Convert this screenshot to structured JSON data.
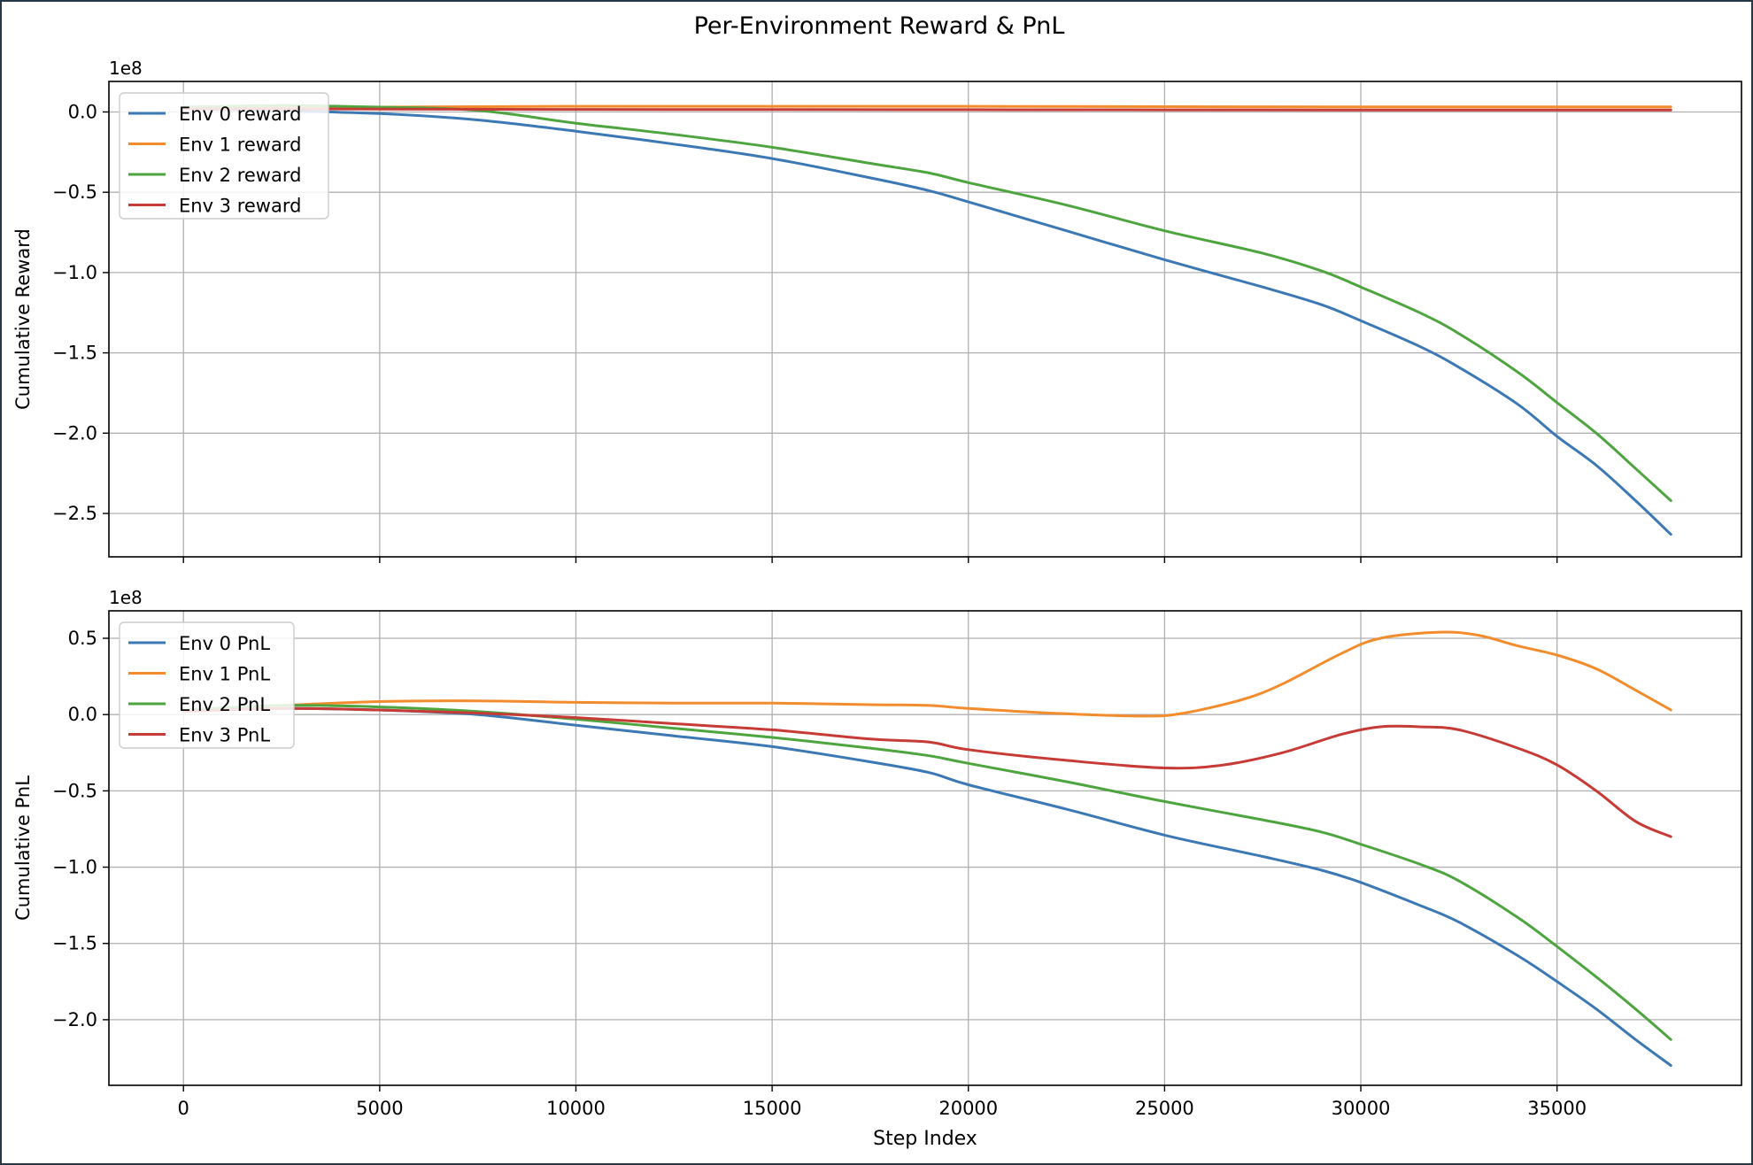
{
  "figure_title": "Per-Environment Reward & PnL",
  "colors": {
    "env0": "#3b78b4",
    "env1": "#f28c2c",
    "env2": "#4ea540",
    "env3": "#c73b36",
    "grid": "#b0b0b0",
    "frame": "#243848"
  },
  "chart_data": [
    {
      "type": "line",
      "title": "",
      "xlabel": "",
      "ylabel": "Cumulative Reward",
      "offset_label": "1e8",
      "xlim": [
        -1900,
        39700
      ],
      "ylim": [
        -2.77,
        0.19
      ],
      "xticks": [
        0,
        5000,
        10000,
        15000,
        20000,
        25000,
        30000,
        35000
      ],
      "yticks": [
        0.0,
        -0.5,
        -1.0,
        -1.5,
        -2.0,
        -2.5
      ],
      "ytick_labels": [
        "0.0",
        "−0.5",
        "−1.0",
        "−1.5",
        "−2.0",
        "−2.5"
      ],
      "show_xtick_labels": false,
      "grid": true,
      "legend_position": "upper-left",
      "series": [
        {
          "name": "Env 0 reward",
          "color_key": "env0",
          "x": [
            0,
            2000,
            5000,
            7500,
            10000,
            12500,
            15000,
            17500,
            19000,
            20000,
            22500,
            25000,
            27500,
            29000,
            30000,
            31500,
            32500,
            34000,
            35000,
            36000,
            37000,
            37900
          ],
          "y": [
            0.02,
            0.01,
            -0.01,
            -0.05,
            -0.12,
            -0.2,
            -0.29,
            -0.41,
            -0.49,
            -0.56,
            -0.74,
            -0.92,
            -1.09,
            -1.2,
            -1.3,
            -1.46,
            -1.59,
            -1.82,
            -2.02,
            -2.2,
            -2.42,
            -2.63
          ]
        },
        {
          "name": "Env 1 reward",
          "color_key": "env1",
          "x": [
            0,
            5000,
            10000,
            15000,
            20000,
            25000,
            30000,
            35000,
            37900
          ],
          "y": [
            0.02,
            0.03,
            0.035,
            0.035,
            0.035,
            0.033,
            0.032,
            0.032,
            0.032
          ]
        },
        {
          "name": "Env 2 reward",
          "color_key": "env2",
          "x": [
            0,
            2500,
            5000,
            7500,
            10000,
            12500,
            15000,
            17500,
            19000,
            20000,
            22500,
            25000,
            27500,
            29000,
            30000,
            31500,
            32500,
            34000,
            35000,
            36000,
            37000,
            37900
          ],
          "y": [
            0.03,
            0.04,
            0.03,
            0.01,
            -0.07,
            -0.14,
            -0.22,
            -0.32,
            -0.38,
            -0.44,
            -0.58,
            -0.74,
            -0.88,
            -0.99,
            -1.09,
            -1.25,
            -1.38,
            -1.62,
            -1.81,
            -2.0,
            -2.22,
            -2.42
          ]
        },
        {
          "name": "Env 3 reward",
          "color_key": "env3",
          "x": [
            0,
            5000,
            10000,
            15000,
            20000,
            25000,
            30000,
            35000,
            37900
          ],
          "y": [
            0.02,
            0.018,
            0.016,
            0.015,
            0.014,
            0.013,
            0.012,
            0.012,
            0.012
          ]
        }
      ]
    },
    {
      "type": "line",
      "title": "",
      "xlabel": "Step Index",
      "ylabel": "Cumulative PnL",
      "offset_label": "1e8",
      "xlim": [
        -1900,
        39700
      ],
      "ylim": [
        -2.43,
        0.68
      ],
      "xticks": [
        0,
        5000,
        10000,
        15000,
        20000,
        25000,
        30000,
        35000
      ],
      "xtick_labels": [
        "0",
        "5000",
        "10000",
        "15000",
        "20000",
        "25000",
        "30000",
        "35000"
      ],
      "yticks": [
        0.5,
        0.0,
        -0.5,
        -1.0,
        -1.5,
        -2.0
      ],
      "ytick_labels": [
        "0.5",
        "0.0",
        "−0.5",
        "−1.0",
        "−1.5",
        "−2.0"
      ],
      "show_xtick_labels": true,
      "grid": true,
      "legend_position": "upper-left",
      "series": [
        {
          "name": "Env 0 PnL",
          "color_key": "env0",
          "x": [
            0,
            2500,
            5000,
            7500,
            10000,
            12500,
            15000,
            17500,
            19000,
            20000,
            22500,
            25000,
            27500,
            29000,
            30000,
            31500,
            32500,
            34000,
            35000,
            36000,
            37000,
            37900
          ],
          "y": [
            0.03,
            0.04,
            0.03,
            0.0,
            -0.07,
            -0.14,
            -0.21,
            -0.31,
            -0.38,
            -0.46,
            -0.62,
            -0.79,
            -0.93,
            -1.02,
            -1.1,
            -1.25,
            -1.36,
            -1.58,
            -1.75,
            -1.93,
            -2.13,
            -2.3
          ]
        },
        {
          "name": "Env 1 PnL",
          "color_key": "env1",
          "x": [
            0,
            2500,
            5000,
            7500,
            10000,
            12500,
            15000,
            17500,
            19000,
            20000,
            22500,
            24500,
            25500,
            27000,
            28000,
            29500,
            30500,
            32000,
            33000,
            34000,
            35000,
            36000,
            37000,
            37900
          ],
          "y": [
            0.03,
            0.06,
            0.085,
            0.09,
            0.08,
            0.075,
            0.075,
            0.065,
            0.06,
            0.04,
            0.005,
            -0.01,
            0.01,
            0.1,
            0.2,
            0.4,
            0.5,
            0.54,
            0.52,
            0.45,
            0.39,
            0.3,
            0.16,
            0.03
          ]
        },
        {
          "name": "Env 2 PnL",
          "color_key": "env2",
          "x": [
            0,
            2500,
            5000,
            7500,
            10000,
            12500,
            15000,
            17500,
            19000,
            20000,
            22500,
            25000,
            27500,
            29000,
            30000,
            31500,
            32500,
            34000,
            35000,
            36000,
            37000,
            37900
          ],
          "y": [
            0.03,
            0.06,
            0.05,
            0.02,
            -0.03,
            -0.09,
            -0.15,
            -0.22,
            -0.27,
            -0.32,
            -0.44,
            -0.57,
            -0.69,
            -0.77,
            -0.85,
            -0.98,
            -1.09,
            -1.33,
            -1.52,
            -1.72,
            -1.93,
            -2.13
          ]
        },
        {
          "name": "Env 3 PnL",
          "color_key": "env3",
          "x": [
            0,
            2500,
            5000,
            7500,
            10000,
            12500,
            15000,
            17500,
            19000,
            20000,
            22500,
            25000,
            26500,
            28000,
            29500,
            30500,
            31500,
            32500,
            34000,
            35000,
            36000,
            37000,
            37900
          ],
          "y": [
            0.02,
            0.04,
            0.03,
            0.01,
            -0.02,
            -0.06,
            -0.1,
            -0.16,
            -0.18,
            -0.23,
            -0.3,
            -0.35,
            -0.33,
            -0.25,
            -0.13,
            -0.08,
            -0.08,
            -0.1,
            -0.22,
            -0.33,
            -0.5,
            -0.7,
            -0.8
          ]
        }
      ]
    }
  ]
}
